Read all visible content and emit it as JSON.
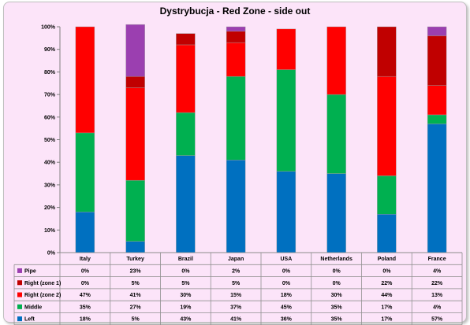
{
  "chart_data": {
    "type": "bar",
    "stacked": true,
    "percent": true,
    "title": "Dystrybucja - Red Zone - side out",
    "categories": [
      "Italy",
      "Turkey",
      "Brazil",
      "Japan",
      "USA",
      "Netherlands",
      "Poland",
      "France"
    ],
    "yticks": [
      "0%",
      "10%",
      "20%",
      "30%",
      "40%",
      "50%",
      "60%",
      "70%",
      "80%",
      "90%",
      "100%"
    ],
    "ylim": [
      0,
      100
    ],
    "grid": false,
    "legend": "table-below",
    "series": [
      {
        "name": "Pipe",
        "color": "#9b3fb0",
        "values": [
          0,
          23,
          0,
          2,
          0,
          0,
          0,
          4
        ],
        "labels": [
          "0%",
          "23%",
          "0%",
          "2%",
          "0%",
          "0%",
          "0%",
          "4%"
        ]
      },
      {
        "name": "Right (zone 1)",
        "color": "#c00000",
        "values": [
          0,
          5,
          5,
          5,
          0,
          0,
          22,
          22
        ],
        "labels": [
          "0%",
          "5%",
          "5%",
          "5%",
          "0%",
          "0%",
          "22%",
          "22%"
        ]
      },
      {
        "name": "Right (zone 2)",
        "color": "#ff0000",
        "values": [
          47,
          41,
          30,
          15,
          18,
          30,
          44,
          13
        ],
        "labels": [
          "47%",
          "41%",
          "30%",
          "15%",
          "18%",
          "30%",
          "44%",
          "13%"
        ]
      },
      {
        "name": "Middle",
        "color": "#00b050",
        "values": [
          35,
          27,
          19,
          37,
          45,
          35,
          17,
          4
        ],
        "labels": [
          "35%",
          "27%",
          "19%",
          "37%",
          "45%",
          "35%",
          "17%",
          "4%"
        ]
      },
      {
        "name": "Left",
        "color": "#0070c0",
        "values": [
          18,
          5,
          43,
          41,
          36,
          35,
          17,
          57
        ],
        "labels": [
          "18%",
          "5%",
          "43%",
          "41%",
          "36%",
          "35%",
          "17%",
          "57%"
        ]
      }
    ]
  }
}
